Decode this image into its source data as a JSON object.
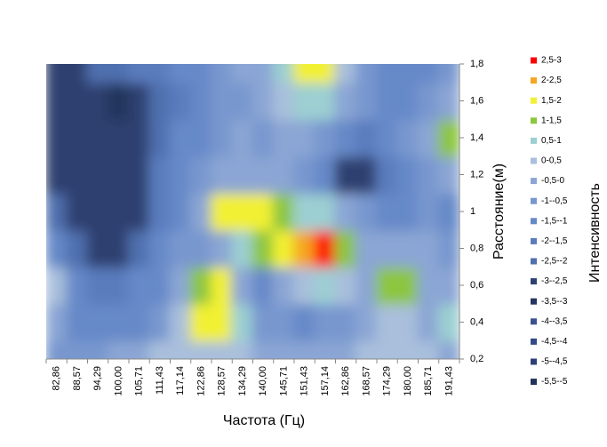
{
  "chart_data": {
    "type": "contour",
    "x_title": "Частота (Гц)",
    "y_title": "Расстояние(м)",
    "categories": [
      "82,86",
      "88,57",
      "94,29",
      "100,00",
      "105,71",
      "111,43",
      "117,14",
      "122,86",
      "128,57",
      "134,29",
      "140,00",
      "145,71",
      "151,43",
      "157,14",
      "162,86",
      "168,57",
      "174,29",
      "180,00",
      "185,71",
      "191,43"
    ],
    "y": [
      0.2,
      0.4,
      0.6,
      0.8,
      1.0,
      1.2,
      1.4,
      1.6,
      1.8
    ],
    "ylim": [
      0.2,
      1.8
    ],
    "yticks": [
      {
        "value": 0.2,
        "label": "0,2"
      },
      {
        "value": 0.4,
        "label": "0,4"
      },
      {
        "value": 0.6,
        "label": "0,6"
      },
      {
        "value": 0.8,
        "label": "0,8"
      },
      {
        "value": 1,
        "label": "1"
      },
      {
        "value": 1.2,
        "label": "1,2"
      },
      {
        "value": 1.4,
        "label": "1,4"
      },
      {
        "value": 1.6,
        "label": "1,6"
      },
      {
        "value": 1.8,
        "label": "1,8"
      }
    ],
    "z": [
      [
        -1,
        -1,
        -0.8,
        -0.5,
        -0.3,
        0,
        0.2,
        0.2,
        0.1,
        0,
        -0.2,
        -0.3,
        -0.5,
        -0.5,
        -0.3,
        0.2,
        0.3,
        0.2,
        0,
        -0.5
      ],
      [
        -0.3,
        -1.5,
        -1.5,
        -1.5,
        -1.2,
        -1,
        0,
        1.8,
        1.8,
        0.5,
        -0.8,
        -1,
        -1.2,
        -1,
        -0.8,
        -0.5,
        0.3,
        0.2,
        -0.3,
        0.8
      ],
      [
        0.3,
        -1.5,
        -1.8,
        -1.8,
        -1.5,
        -1.5,
        -0.5,
        1.2,
        1.5,
        -0.5,
        -1.2,
        -0.5,
        0.2,
        0.5,
        0,
        -0.3,
        1.2,
        1,
        -0.5,
        -0.3
      ],
      [
        -1.5,
        -2.5,
        -3,
        -3,
        -2.5,
        -1.5,
        -1,
        -0.8,
        -0.5,
        0.5,
        1,
        1.8,
        2.2,
        2.8,
        1,
        -0.5,
        -0.3,
        -0.3,
        -0.5,
        -1
      ],
      [
        -2.5,
        -3,
        -3,
        -3,
        -2.8,
        -2,
        -1.2,
        -0.5,
        1.5,
        1.8,
        1.8,
        1.2,
        0.5,
        0.5,
        -0.5,
        -1,
        -1.5,
        -1.5,
        -1,
        -1.5
      ],
      [
        -2.8,
        -3,
        -3,
        -3,
        -3,
        -2,
        -1.5,
        -1,
        -0.5,
        -0.3,
        -0.5,
        -0.5,
        -1,
        -1.5,
        -2.8,
        -3,
        -2,
        -1.5,
        -1,
        -0.5
      ],
      [
        -2.8,
        -3,
        -3,
        -3,
        -3,
        -2.5,
        -1.5,
        -1.2,
        -1,
        -0.5,
        -0.8,
        -0.3,
        -0.5,
        -1,
        -1.5,
        -2,
        -1.5,
        -1,
        -0.5,
        1.2
      ],
      [
        -3,
        -3,
        -2.8,
        -3.5,
        -3,
        -2.5,
        -2,
        -1.5,
        -1,
        -0.8,
        -0.5,
        0.3,
        0.8,
        0.5,
        -0.5,
        -1,
        -1.5,
        -1.5,
        -1,
        -0.5
      ],
      [
        -2.8,
        -3,
        -2.5,
        -2.5,
        -2,
        -2,
        -1.5,
        -1.5,
        -1,
        -0.5,
        -0.3,
        0.8,
        1.8,
        1.5,
        0,
        -1,
        -1.5,
        -1.5,
        -1.5,
        -1
      ]
    ],
    "legend": {
      "title": "Интенсивность",
      "items": [
        {
          "label": "2,5-3",
          "min": 2.5,
          "max": 3,
          "color": "#ff0000"
        },
        {
          "label": "2-2,5",
          "min": 2,
          "max": 2.5,
          "color": "#f5a623"
        },
        {
          "label": "1,5-2",
          "min": 1.5,
          "max": 2,
          "color": "#f2f032"
        },
        {
          "label": "1-1,5",
          "min": 1,
          "max": 1.5,
          "color": "#8cc63f"
        },
        {
          "label": "0,5-1",
          "min": 0.5,
          "max": 1,
          "color": "#9ccfd2"
        },
        {
          "label": "0-0,5",
          "min": 0,
          "max": 0.5,
          "color": "#a9bfdc"
        },
        {
          "label": "-0,5-0",
          "min": -0.5,
          "max": 0,
          "color": "#8ba6d4"
        },
        {
          "label": "-1--0,5",
          "min": -1,
          "max": -0.5,
          "color": "#7897cf"
        },
        {
          "label": "-1,5--1",
          "min": -1.5,
          "max": -1,
          "color": "#6689c8"
        },
        {
          "label": "-2--1,5",
          "min": -2,
          "max": -1.5,
          "color": "#5a7cbd"
        },
        {
          "label": "-2,5--2",
          "min": -2.5,
          "max": -2,
          "color": "#5070ae"
        },
        {
          "label": "-3--2,5",
          "min": -3,
          "max": -2.5,
          "color": "#2f4170"
        },
        {
          "label": "-3,5--3",
          "min": -3.5,
          "max": -3,
          "color": "#24345c"
        },
        {
          "label": "-4--3,5",
          "min": -4,
          "max": -3.5,
          "color": "#3b5190"
        },
        {
          "label": "-4,5--4",
          "min": -4.5,
          "max": -4,
          "color": "#344a88"
        },
        {
          "label": "-5--4,5",
          "min": -5,
          "max": -4.5,
          "color": "#2c3f78"
        },
        {
          "label": "-5,5--5",
          "min": -5.5,
          "max": -5,
          "color": "#22305a"
        }
      ]
    }
  }
}
